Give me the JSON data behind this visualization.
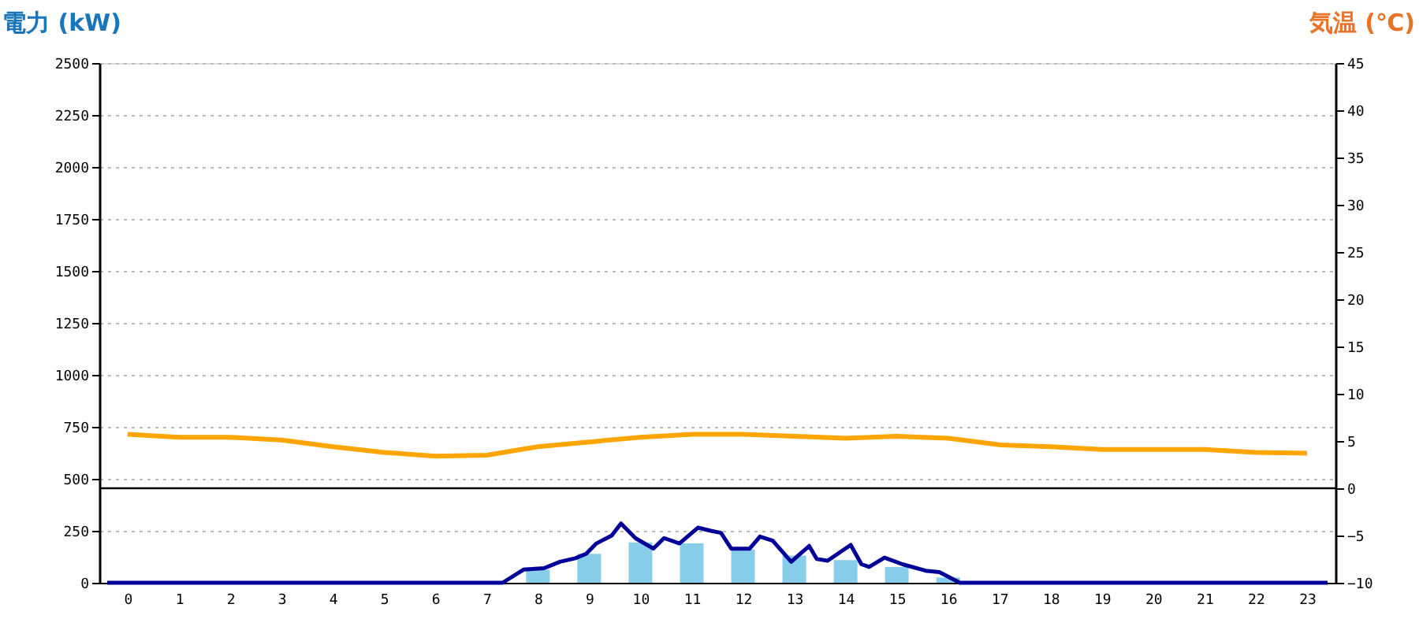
{
  "chart_data": {
    "type": "bar",
    "ylabel": "電力 (kW)",
    "y2label": "気温 (℃)",
    "x": [
      0,
      1,
      2,
      3,
      4,
      5,
      6,
      7,
      8,
      9,
      10,
      11,
      12,
      13,
      14,
      15,
      16,
      17,
      18,
      19,
      20,
      21,
      22,
      23
    ],
    "xlim": [
      -0.4,
      23.4
    ],
    "xticks": [
      0,
      1,
      2,
      3,
      4,
      5,
      6,
      7,
      8,
      9,
      10,
      11,
      12,
      13,
      14,
      15,
      16,
      17,
      18,
      19,
      20,
      21,
      22,
      23
    ],
    "ylim": [
      0,
      2500
    ],
    "yticks": [
      0,
      250,
      500,
      750,
      1000,
      1250,
      1500,
      1750,
      2000,
      2250,
      2500
    ],
    "y2lim": [
      -10,
      45
    ],
    "y2ticks": [
      -10,
      -5,
      0,
      5,
      10,
      15,
      20,
      25,
      30,
      35,
      40,
      45
    ],
    "grid": "y",
    "ref_lines": [
      {
        "axis": "y2",
        "value": 0,
        "color": "#000000"
      }
    ],
    "series": [
      {
        "color": "#87ceeb",
        "values": [
          0,
          0,
          0,
          0,
          0,
          0,
          0,
          0,
          63,
          139,
          194,
          189,
          159,
          131,
          109,
          76,
          25,
          0,
          0,
          0,
          0,
          0,
          0,
          0
        ]
      },
      {
        "type": "line",
        "color": "#000099",
        "x": [
          -0.4,
          7.31,
          7.72,
          8.12,
          8.43,
          8.73,
          8.94,
          9.14,
          9.44,
          9.62,
          9.9,
          10.25,
          10.46,
          10.76,
          11.12,
          11.37,
          11.57,
          11.77,
          12.13,
          12.33,
          12.58,
          12.94,
          13.29,
          13.44,
          13.65,
          14.1,
          14.31,
          14.46,
          14.76,
          15.11,
          15.56,
          15.83,
          16.23,
          23.4
        ],
        "values": [
          0,
          0,
          63,
          70,
          101,
          118,
          139,
          189,
          227,
          285,
          215,
          164,
          215,
          189,
          265,
          250,
          240,
          164,
          164,
          222,
          202,
          101,
          177,
          114,
          106,
          182,
          89,
          76,
          121,
          89,
          58,
          51,
          0,
          0
        ]
      },
      {
        "type": "line",
        "axis": "y2",
        "color": "#ffa500",
        "values": [
          5.7,
          5.4,
          5.4,
          5.1,
          4.4,
          3.8,
          3.4,
          3.5,
          4.4,
          4.9,
          5.4,
          5.7,
          5.7,
          5.5,
          5.3,
          5.5,
          5.3,
          4.6,
          4.4,
          4.1,
          4.1,
          4.1,
          3.8,
          3.7
        ]
      }
    ]
  }
}
